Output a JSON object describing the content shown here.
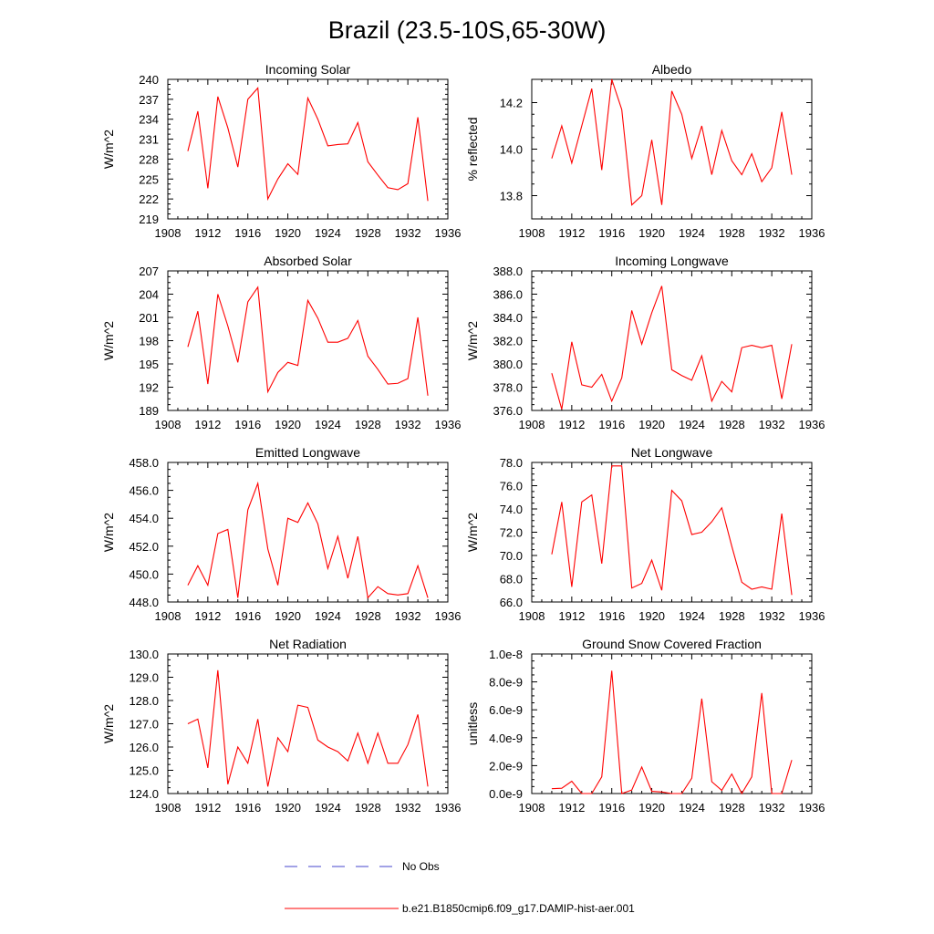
{
  "title": "Brazil (23.5-10S,65-30W)",
  "colors": {
    "series": "#ff0000",
    "obs": "#4444cc",
    "axis": "#000000",
    "background": "#ffffff"
  },
  "legend": {
    "obs_label": "No Obs",
    "model_label": "b.e21.B1850cmip6.f09_g17.DAMIP-hist-aer.001"
  },
  "chart_data": [
    {
      "type": "line",
      "title": "Incoming Solar",
      "ylabel": "W/m^2",
      "xlabel": "",
      "xlim": [
        1908,
        1936
      ],
      "xticks": [
        "1908",
        "1912",
        "1916",
        "1920",
        "1924",
        "1928",
        "1932",
        "1936"
      ],
      "ylim": [
        219,
        240
      ],
      "yticks": [
        "219",
        "222",
        "225",
        "228",
        "231",
        "234",
        "237",
        "240"
      ],
      "grid": false,
      "x": [
        1910,
        1911,
        1912,
        1913,
        1914,
        1915,
        1916,
        1917,
        1918,
        1919,
        1920,
        1921,
        1922,
        1923,
        1924,
        1925,
        1926,
        1927,
        1928,
        1929,
        1930,
        1931,
        1932,
        1933,
        1934
      ],
      "series": [
        {
          "values": [
            229.2,
            235.2,
            223.6,
            237.4,
            232.7,
            226.8,
            237.0,
            238.7,
            222.0,
            225.0,
            227.3,
            225.7,
            237.2,
            234.0,
            230.0,
            230.2,
            230.3,
            233.5,
            227.6,
            225.6,
            223.7,
            223.4,
            224.3,
            234.3,
            221.7
          ]
        }
      ]
    },
    {
      "type": "line",
      "title": "Albedo",
      "ylabel": "% reflected",
      "xlabel": "",
      "xlim": [
        1908,
        1936
      ],
      "xticks": [
        "1908",
        "1912",
        "1916",
        "1920",
        "1924",
        "1928",
        "1932",
        "1936"
      ],
      "ylim": [
        13.7,
        14.3
      ],
      "yticks": [
        "13.8",
        "14.0",
        "14.2"
      ],
      "ytick_values": [
        13.8,
        14.0,
        14.2
      ],
      "grid": false,
      "x": [
        1910,
        1911,
        1912,
        1913,
        1914,
        1915,
        1916,
        1917,
        1918,
        1919,
        1920,
        1921,
        1922,
        1923,
        1924,
        1925,
        1926,
        1927,
        1928,
        1929,
        1930,
        1931,
        1932,
        1933,
        1934
      ],
      "series": [
        {
          "values": [
            13.96,
            14.1,
            13.94,
            14.1,
            14.26,
            13.91,
            14.3,
            14.17,
            13.76,
            13.8,
            14.04,
            13.76,
            14.25,
            14.15,
            13.96,
            14.1,
            13.89,
            14.08,
            13.95,
            13.89,
            13.98,
            13.86,
            13.92,
            14.16,
            13.89
          ]
        }
      ]
    },
    {
      "type": "line",
      "title": "Absorbed Solar",
      "ylabel": "W/m^2",
      "xlabel": "",
      "xlim": [
        1908,
        1936
      ],
      "xticks": [
        "1908",
        "1912",
        "1916",
        "1920",
        "1924",
        "1928",
        "1932",
        "1936"
      ],
      "ylim": [
        189,
        207
      ],
      "yticks": [
        "189",
        "192",
        "195",
        "198",
        "201",
        "204",
        "207"
      ],
      "grid": false,
      "x": [
        1910,
        1911,
        1912,
        1913,
        1914,
        1915,
        1916,
        1917,
        1918,
        1919,
        1920,
        1921,
        1922,
        1923,
        1924,
        1925,
        1926,
        1927,
        1928,
        1929,
        1930,
        1931,
        1932,
        1933,
        1934
      ],
      "series": [
        {
          "values": [
            197.2,
            201.8,
            192.4,
            204.0,
            199.9,
            195.2,
            203.0,
            204.9,
            191.4,
            193.9,
            195.2,
            194.8,
            203.2,
            200.9,
            197.8,
            197.8,
            198.3,
            200.6,
            196.0,
            194.3,
            192.4,
            192.5,
            193.1,
            201.0,
            190.9
          ]
        }
      ]
    },
    {
      "type": "line",
      "title": "Incoming Longwave",
      "ylabel": "W/m^2",
      "xlabel": "",
      "xlim": [
        1908,
        1936
      ],
      "xticks": [
        "1908",
        "1912",
        "1916",
        "1920",
        "1924",
        "1928",
        "1932",
        "1936"
      ],
      "ylim": [
        376.0,
        388.0
      ],
      "yticks": [
        "376.0",
        "378.0",
        "380.0",
        "382.0",
        "384.0",
        "386.0",
        "388.0"
      ],
      "grid": false,
      "x": [
        1910,
        1911,
        1912,
        1913,
        1914,
        1915,
        1916,
        1917,
        1918,
        1919,
        1920,
        1921,
        1922,
        1923,
        1924,
        1925,
        1926,
        1927,
        1928,
        1929,
        1930,
        1931,
        1932,
        1933,
        1934
      ],
      "series": [
        {
          "values": [
            379.2,
            376.1,
            381.9,
            378.2,
            378.0,
            379.1,
            376.8,
            378.8,
            384.6,
            381.7,
            384.4,
            386.7,
            379.5,
            379.0,
            378.6,
            380.7,
            376.8,
            378.5,
            377.6,
            381.4,
            381.6,
            381.4,
            381.6,
            377.0,
            381.7
          ]
        }
      ]
    },
    {
      "type": "line",
      "title": "Emitted Longwave",
      "ylabel": "W/m^2",
      "xlabel": "",
      "xlim": [
        1908,
        1936
      ],
      "xticks": [
        "1908",
        "1912",
        "1916",
        "1920",
        "1924",
        "1928",
        "1932",
        "1936"
      ],
      "ylim": [
        448.0,
        458.0
      ],
      "yticks": [
        "448.0",
        "450.0",
        "452.0",
        "454.0",
        "456.0",
        "458.0"
      ],
      "grid": false,
      "x": [
        1910,
        1911,
        1912,
        1913,
        1914,
        1915,
        1916,
        1917,
        1918,
        1919,
        1920,
        1921,
        1922,
        1923,
        1924,
        1925,
        1926,
        1927,
        1928,
        1929,
        1930,
        1931,
        1932,
        1933,
        1934
      ],
      "series": [
        {
          "values": [
            449.2,
            450.6,
            449.2,
            452.9,
            453.2,
            448.3,
            454.6,
            456.5,
            451.8,
            449.2,
            454.0,
            453.7,
            455.1,
            453.6,
            450.4,
            452.7,
            449.7,
            452.7,
            448.3,
            449.1,
            448.6,
            448.5,
            448.6,
            450.6,
            448.3
          ]
        }
      ]
    },
    {
      "type": "line",
      "title": "Net Longwave",
      "ylabel": "W/m^2",
      "xlabel": "",
      "xlim": [
        1908,
        1936
      ],
      "xticks": [
        "1908",
        "1912",
        "1916",
        "1920",
        "1924",
        "1928",
        "1932",
        "1936"
      ],
      "ylim": [
        66.0,
        78.0
      ],
      "yticks": [
        "66.0",
        "68.0",
        "70.0",
        "72.0",
        "74.0",
        "76.0",
        "78.0"
      ],
      "grid": false,
      "x": [
        1910,
        1911,
        1912,
        1913,
        1914,
        1915,
        1916,
        1917,
        1918,
        1919,
        1920,
        1921,
        1922,
        1923,
        1924,
        1925,
        1926,
        1927,
        1928,
        1929,
        1930,
        1931,
        1932,
        1933,
        1934
      ],
      "series": [
        {
          "values": [
            70.1,
            74.6,
            67.3,
            74.6,
            75.2,
            69.3,
            77.7,
            77.7,
            67.2,
            67.6,
            69.6,
            67.0,
            75.6,
            74.7,
            71.8,
            72.0,
            72.9,
            74.1,
            70.8,
            67.7,
            67.1,
            67.3,
            67.1,
            73.6,
            66.6
          ]
        }
      ]
    },
    {
      "type": "line",
      "title": "Net Radiation",
      "ylabel": "W/m^2",
      "xlabel": "",
      "xlim": [
        1908,
        1936
      ],
      "xticks": [
        "1908",
        "1912",
        "1916",
        "1920",
        "1924",
        "1928",
        "1932",
        "1936"
      ],
      "ylim": [
        124.0,
        130.0
      ],
      "yticks": [
        "124.0",
        "125.0",
        "126.0",
        "127.0",
        "128.0",
        "129.0",
        "130.0"
      ],
      "grid": false,
      "x": [
        1910,
        1911,
        1912,
        1913,
        1914,
        1915,
        1916,
        1917,
        1918,
        1919,
        1920,
        1921,
        1922,
        1923,
        1924,
        1925,
        1926,
        1927,
        1928,
        1929,
        1930,
        1931,
        1932,
        1933,
        1934
      ],
      "series": [
        {
          "values": [
            127.0,
            127.2,
            125.1,
            129.3,
            124.4,
            126.0,
            125.3,
            127.2,
            124.3,
            126.4,
            125.8,
            127.8,
            127.7,
            126.3,
            126.0,
            125.8,
            125.4,
            126.6,
            125.3,
            126.6,
            125.3,
            125.3,
            126.1,
            127.4,
            124.3
          ]
        }
      ]
    },
    {
      "type": "line",
      "title": "Ground Snow Covered Fraction",
      "ylabel": "unitless",
      "xlabel": "",
      "xlim": [
        1908,
        1936
      ],
      "xticks": [
        "1908",
        "1912",
        "1916",
        "1920",
        "1924",
        "1928",
        "1932",
        "1936"
      ],
      "ylim": [
        0,
        1e-08
      ],
      "yticks": [
        "0.0e-9",
        "2.0e-9",
        "4.0e-9",
        "6.0e-9",
        "8.0e-9",
        "1.0e-8"
      ],
      "ytick_values": [
        0,
        2e-09,
        4e-09,
        6e-09,
        8e-09,
        1e-08
      ],
      "grid": false,
      "x": [
        1910,
        1911,
        1912,
        1913,
        1914,
        1915,
        1916,
        1917,
        1918,
        1919,
        1920,
        1921,
        1922,
        1923,
        1924,
        1925,
        1926,
        1927,
        1928,
        1929,
        1930,
        1931,
        1932,
        1933,
        1934
      ],
      "series": [
        {
          "values": [
            3.5e-10,
            3.8e-10,
            8.8e-10,
            0,
            0,
            1.2e-09,
            8.8e-09,
            0,
            2.5e-10,
            1.9e-09,
            1.6e-10,
            1.1e-10,
            0,
            0,
            1.1e-09,
            6.8e-09,
            8.5e-10,
            2.3e-10,
            1.4e-09,
            0,
            1.2e-09,
            7.2e-09,
            0,
            0,
            2.4e-09
          ]
        }
      ]
    }
  ]
}
